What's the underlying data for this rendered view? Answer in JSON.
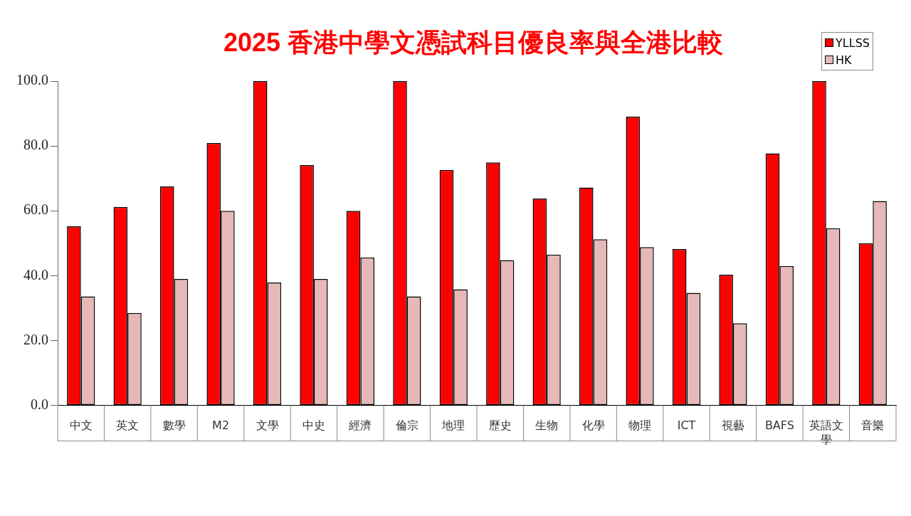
{
  "chart_data": {
    "type": "bar",
    "title": "2025 香港中學文憑試科目優良率與全港比較",
    "categories": [
      "中文",
      "英文",
      "數學",
      "M2",
      "文學",
      "中史",
      "經濟",
      "倫宗",
      "地理",
      "歷史",
      "生物",
      "化學",
      "物理",
      "ICT",
      "視藝",
      "BAFS",
      "英語文學",
      "音樂"
    ],
    "series": [
      {
        "name": "YLLSS",
        "color": "#ff0000",
        "values": [
          55.2,
          61.2,
          67.5,
          80.9,
          100,
          74.1,
          60.0,
          100,
          72.6,
          74.9,
          63.8,
          67.2,
          89.1,
          48.2,
          40.3,
          77.7,
          100,
          50.0
        ]
      },
      {
        "name": "HK",
        "color": "#e6b8b7",
        "values": [
          33.6,
          28.5,
          39.0,
          60.0,
          37.9,
          39.0,
          45.6,
          33.6,
          35.8,
          44.8,
          46.5,
          51.2,
          48.8,
          34.7,
          25.3,
          43.0,
          54.6,
          63.0
        ]
      }
    ],
    "ylim": [
      0,
      100
    ],
    "yticks": [
      {
        "value": 0,
        "label": "0.0"
      },
      {
        "value": 20,
        "label": "20.0"
      },
      {
        "value": 40,
        "label": "40.0"
      },
      {
        "value": 60,
        "label": "60.0"
      },
      {
        "value": 80,
        "label": "80.0"
      },
      {
        "value": 100,
        "label": "100.0"
      }
    ],
    "grid": false,
    "legend": "top right"
  }
}
